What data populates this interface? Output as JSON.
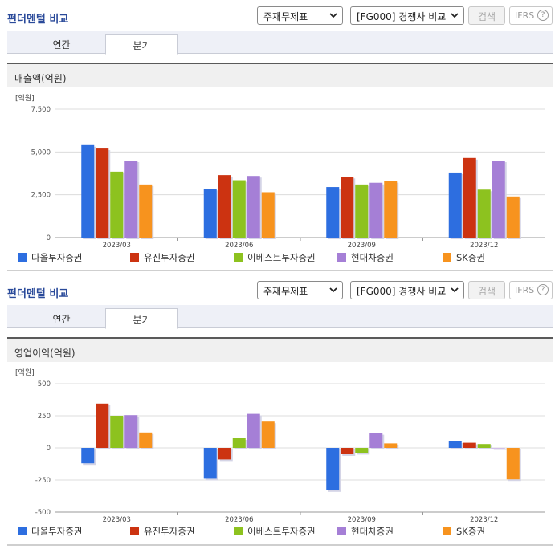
{
  "colors": {
    "grid": "#dcdcdc",
    "axis": "#999999",
    "bar_shadow": "#d4d4e6"
  },
  "chart_data": [
    {
      "type": "bar",
      "panel_title": "펀더멘털 비교",
      "select_1": "주재무제표",
      "select_2": "[FG000] 경쟁사 비교",
      "search_label": "검색",
      "ifrs_label": "IFRS",
      "ifrs_help": "?",
      "tabs": [
        "연간",
        "분기"
      ],
      "active_tab": 1,
      "title": "매출액(억원)",
      "ylabel": "[억원]",
      "ylim": [
        0,
        7500
      ],
      "yticks": [
        0,
        2500,
        5000,
        7500
      ],
      "ytick_labels": [
        "0",
        "2,500",
        "5,000",
        "7,500"
      ],
      "categories": [
        "2023/03",
        "2023/06",
        "2023/09",
        "2023/12"
      ],
      "series": [
        {
          "name": "다올투자증권",
          "color": "#2d6ee0",
          "values": [
            5400,
            2850,
            2950,
            3800
          ]
        },
        {
          "name": "유진투자증권",
          "color": "#cc3311",
          "values": [
            5200,
            3650,
            3550,
            4650
          ]
        },
        {
          "name": "이베스트투자증권",
          "color": "#8dc21f",
          "values": [
            3850,
            3350,
            3100,
            2800
          ]
        },
        {
          "name": "현대차증권",
          "color": "#a57fd6",
          "values": [
            4500,
            3600,
            3200,
            4500
          ]
        },
        {
          "name": "SK증권",
          "color": "#f7931e",
          "values": [
            3100,
            2650,
            3300,
            2400
          ]
        }
      ],
      "grid": true,
      "legend_position": "bottom"
    },
    {
      "type": "bar",
      "panel_title": "펀더멘털 비교",
      "select_1": "주재무제표",
      "select_2": "[FG000] 경쟁사 비교",
      "search_label": "검색",
      "ifrs_label": "IFRS",
      "ifrs_help": "?",
      "tabs": [
        "연간",
        "분기"
      ],
      "active_tab": 1,
      "title": "영업이익(억원)",
      "ylabel": "[억원]",
      "ylim": [
        -500,
        500
      ],
      "yticks": [
        -500,
        -250,
        0,
        250,
        500
      ],
      "ytick_labels": [
        "-500",
        "-250",
        "0",
        "250",
        "500"
      ],
      "categories": [
        "2023/03",
        "2023/06",
        "2023/09",
        "2023/12"
      ],
      "series": [
        {
          "name": "다올투자증권",
          "color": "#2d6ee0",
          "values": [
            -120,
            -240,
            -330,
            50
          ]
        },
        {
          "name": "유진투자증권",
          "color": "#cc3311",
          "values": [
            345,
            -90,
            -50,
            40
          ]
        },
        {
          "name": "이베스트투자증권",
          "color": "#8dc21f",
          "values": [
            250,
            75,
            -40,
            30
          ]
        },
        {
          "name": "현대차증권",
          "color": "#a57fd6",
          "values": [
            255,
            265,
            115,
            0
          ]
        },
        {
          "name": "SK증권",
          "color": "#f7931e",
          "values": [
            120,
            205,
            35,
            -245
          ]
        }
      ],
      "grid": true,
      "legend_position": "bottom"
    }
  ]
}
